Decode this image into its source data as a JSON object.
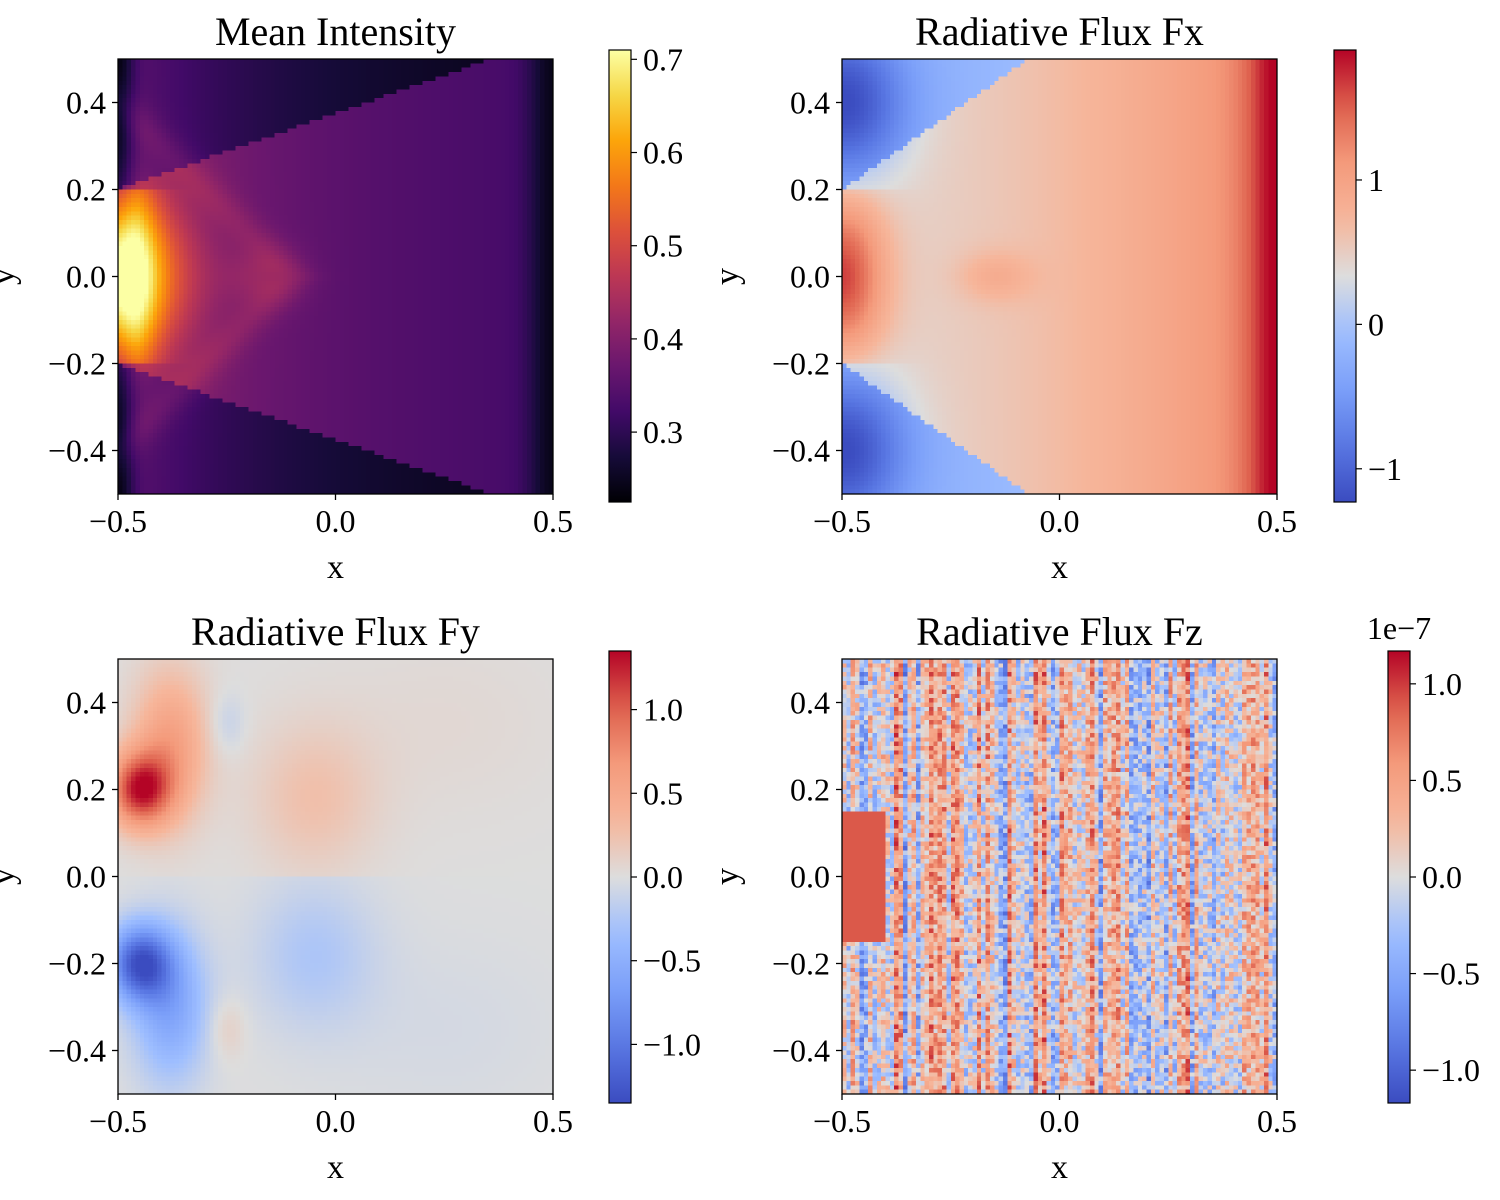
{
  "chart_data": [
    {
      "type": "heatmap",
      "title": "Mean Intensity",
      "xlabel": "x",
      "ylabel": "y",
      "xlim": [
        -0.5,
        0.5
      ],
      "ylim": [
        -0.5,
        0.5
      ],
      "xticks": [
        -0.5,
        0.0,
        0.5
      ],
      "xtick_labels": [
        "−0.5",
        "0.0",
        "0.5"
      ],
      "yticks": [
        -0.4,
        -0.2,
        0.0,
        0.2,
        0.4
      ],
      "ytick_labels": [
        "−0.4",
        "−0.2",
        "0.0",
        "0.2",
        "0.4"
      ],
      "colormap": "inferno",
      "clim": [
        0.225,
        0.71
      ],
      "cbar_ticks": [
        0.3,
        0.4,
        0.5,
        0.6,
        0.7
      ],
      "cbar_tick_labels": [
        "0.3",
        "0.4",
        "0.5",
        "0.6",
        "0.7"
      ],
      "cbar_offset_label": "",
      "field": "mean_intensity"
    },
    {
      "type": "heatmap",
      "title": "Radiative Flux Fx",
      "xlabel": "x",
      "ylabel": "y",
      "xlim": [
        -0.5,
        0.5
      ],
      "ylim": [
        -0.5,
        0.5
      ],
      "xticks": [
        -0.5,
        0.0,
        0.5
      ],
      "xtick_labels": [
        "−0.5",
        "0.0",
        "0.5"
      ],
      "yticks": [
        -0.4,
        -0.2,
        0.0,
        0.2,
        0.4
      ],
      "ytick_labels": [
        "−0.4",
        "−0.2",
        "0.0",
        "0.2",
        "0.4"
      ],
      "colormap": "coolwarm",
      "clim": [
        -1.23,
        1.9
      ],
      "cbar_ticks": [
        -1,
        0,
        1
      ],
      "cbar_tick_labels": [
        "−1",
        "0",
        "1"
      ],
      "cbar_offset_label": "",
      "field": "flux_x"
    },
    {
      "type": "heatmap",
      "title": "Radiative Flux Fy",
      "xlabel": "x",
      "ylabel": "y",
      "xlim": [
        -0.5,
        0.5
      ],
      "ylim": [
        -0.5,
        0.5
      ],
      "xticks": [
        -0.5,
        0.0,
        0.5
      ],
      "xtick_labels": [
        "−0.5",
        "0.0",
        "0.5"
      ],
      "yticks": [
        -0.4,
        -0.2,
        0.0,
        0.2,
        0.4
      ],
      "ytick_labels": [
        "−0.4",
        "−0.2",
        "0.0",
        "0.2",
        "0.4"
      ],
      "colormap": "coolwarm",
      "clim": [
        -1.35,
        1.35
      ],
      "cbar_ticks": [
        -1.0,
        -0.5,
        0.0,
        0.5,
        1.0
      ],
      "cbar_tick_labels": [
        "−1.0",
        "−0.5",
        "0.0",
        "0.5",
        "1.0"
      ],
      "cbar_offset_label": "",
      "field": "flux_y"
    },
    {
      "type": "heatmap",
      "title": "Radiative Flux Fz",
      "xlabel": "x",
      "ylabel": "y",
      "xlim": [
        -0.5,
        0.5
      ],
      "ylim": [
        -0.5,
        0.5
      ],
      "xticks": [
        -0.5,
        0.0,
        0.5
      ],
      "xtick_labels": [
        "−0.5",
        "0.0",
        "0.5"
      ],
      "yticks": [
        -0.4,
        -0.2,
        0.0,
        0.2,
        0.4
      ],
      "ytick_labels": [
        "−0.4",
        "−0.2",
        "0.0",
        "0.2",
        "0.4"
      ],
      "colormap": "coolwarm",
      "clim": [
        -1.17e-07,
        1.17e-07
      ],
      "cbar_ticks": [
        -1.0,
        -0.5,
        0.0,
        0.5,
        1.0
      ],
      "cbar_tick_labels": [
        "−1.0",
        "−0.5",
        "0.0",
        "0.5",
        "1.0"
      ],
      "cbar_offset_label": "1e−7",
      "field": "flux_z"
    }
  ]
}
